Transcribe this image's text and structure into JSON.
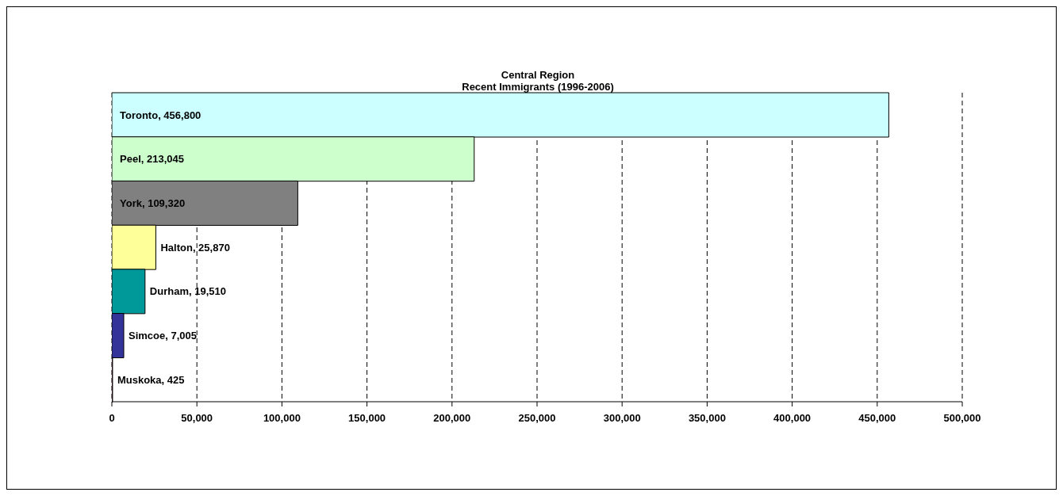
{
  "chart_data": {
    "type": "bar",
    "orientation": "horizontal",
    "title": "Central Region",
    "subtitle": "Recent Immigrants (1996-2006)",
    "categories": [
      null,
      null,
      null,
      null,
      null,
      null,
      null
    ],
    "values": [
      456800,
      213045,
      109320,
      25870,
      19510,
      7005,
      425
    ],
    "colors": [
      "#ccffff",
      "#ccffcc",
      "#808080",
      "#ffff99",
      "#009999",
      "#333399",
      "#993366"
    ],
    "value_labels": [
      "Toronto, 456,800",
      "Peel, 213,045",
      "York, 109,320",
      "Halton, 25,870",
      "Durham, 19,510",
      "Simcoe, 7,005",
      "Muskoka, 425"
    ],
    "xlim": [
      0,
      500000
    ],
    "xticks": [
      0,
      {
        "value": 50000,
        "label": "50,000"
      },
      {
        "value": 100000,
        "label": "100,000"
      },
      {
        "value": 150000,
        "label": "150,000"
      },
      {
        "value": 200000,
        "label": "200,000"
      },
      {
        "value": 250000,
        "label": "250,000"
      },
      {
        "value": 300000,
        "label": "300,000"
      },
      {
        "value": 350000,
        "label": "350,000"
      },
      {
        "value": 400000,
        "label": "400,000"
      },
      {
        "value": 450000,
        "label": "450,000"
      },
      {
        "value": 500000,
        "label": "500,000"
      }
    ],
    "grid": "x",
    "line_style": "dashed",
    "tick_labels": "x"
  }
}
